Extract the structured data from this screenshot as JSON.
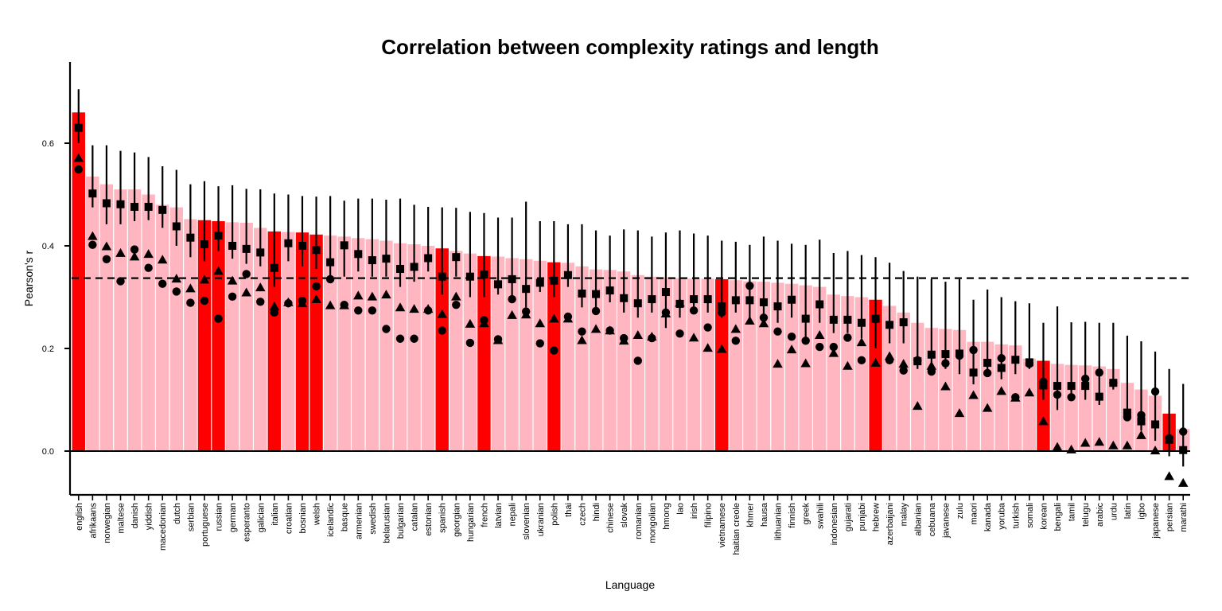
{
  "chart_data": {
    "type": "bar",
    "title": "Correlation between complexity ratings and length",
    "xlabel": "Language",
    "ylabel": "Pearson's r",
    "ylim": [
      -0.09,
      0.72
    ],
    "yticks": [
      0.0,
      0.2,
      0.4,
      0.6
    ],
    "ytick_labels": [
      "0.0",
      "0.2",
      "0.4",
      "0.6"
    ],
    "reference_line": 0.337,
    "grid": false,
    "colors": {
      "highlight": "#ff0000",
      "normal": "#ffb6c1",
      "marker": "#000000"
    },
    "categories": [
      "english",
      "afrikaans",
      "norwegian",
      "maltese",
      "danish",
      "yiddish",
      "macedonian",
      "dutch",
      "serbian",
      "portuguese",
      "russian",
      "german",
      "esperanto",
      "galician",
      "italian",
      "croatian",
      "bosnian",
      "welsh",
      "icelandic",
      "basque",
      "armenian",
      "swedish",
      "belarusian",
      "bulgarian",
      "catalan",
      "estonian",
      "spanish",
      "georgian",
      "hungarian",
      "french",
      "latvian",
      "nepali",
      "slovenian",
      "ukranian",
      "polish",
      "thai",
      "czech",
      "hindi",
      "chinese",
      "slovak",
      "romanian",
      "mongolian",
      "hmong",
      "lao",
      "irish",
      "filipino",
      "vietnamese",
      "haitian creole",
      "khmer",
      "hausa",
      "lithuanian",
      "finnish",
      "greek",
      "swahili",
      "indonesian",
      "gujarati",
      "punjabi",
      "hebrew",
      "azerbaijani",
      "malay",
      "albanian",
      "cebuana",
      "javanese",
      "zulu",
      "maori",
      "kanada",
      "yoruba",
      "turkish",
      "somali",
      "korean",
      "bengali",
      "tamil",
      "telugu",
      "arabic",
      "urdu",
      "latin",
      "igbo",
      "japanese",
      "persian",
      "marathi"
    ],
    "highlighted": [
      "english",
      "portuguese",
      "russian",
      "italian",
      "bosnian",
      "welsh",
      "spanish",
      "french",
      "polish",
      "vietnamese",
      "hebrew",
      "korean",
      "persian"
    ],
    "bar_values": [
      0.66,
      0.535,
      0.52,
      0.51,
      0.51,
      0.5,
      0.48,
      0.475,
      0.452,
      0.45,
      0.448,
      0.446,
      0.445,
      0.435,
      0.428,
      0.427,
      0.426,
      0.422,
      0.42,
      0.418,
      0.415,
      0.413,
      0.41,
      0.405,
      0.403,
      0.4,
      0.395,
      0.39,
      0.385,
      0.38,
      0.379,
      0.376,
      0.374,
      0.371,
      0.368,
      0.367,
      0.36,
      0.354,
      0.353,
      0.35,
      0.343,
      0.34,
      0.339,
      0.337,
      0.336,
      0.336,
      0.335,
      0.333,
      0.331,
      0.33,
      0.328,
      0.326,
      0.323,
      0.32,
      0.305,
      0.302,
      0.3,
      0.295,
      0.283,
      0.27,
      0.25,
      0.24,
      0.238,
      0.236,
      0.213,
      0.213,
      0.208,
      0.206,
      0.18,
      0.176,
      0.17,
      0.168,
      0.167,
      0.165,
      0.16,
      0.133,
      0.12,
      0.108,
      0.073,
      0.043
    ],
    "series": [
      {
        "name": "",
        "marker": "square",
        "values": [
          0.63,
          0.502,
          0.483,
          0.481,
          0.476,
          0.476,
          0.47,
          0.438,
          0.416,
          0.403,
          0.42,
          0.4,
          0.394,
          0.387,
          0.357,
          0.405,
          0.4,
          0.392,
          0.368,
          0.401,
          0.384,
          0.372,
          0.375,
          0.355,
          0.359,
          0.376,
          0.34,
          0.378,
          0.34,
          0.344,
          0.325,
          0.335,
          0.316,
          0.328,
          0.332,
          0.343,
          0.307,
          0.306,
          0.313,
          0.298,
          0.288,
          0.296,
          0.31,
          0.287,
          0.296,
          0.296,
          0.282,
          0.294,
          0.294,
          0.29,
          0.282,
          0.295,
          0.258,
          0.286,
          0.256,
          0.256,
          0.25,
          0.258,
          0.246,
          0.251,
          0.175,
          0.188,
          0.189,
          0.19,
          0.153,
          0.172,
          0.162,
          0.178,
          0.173,
          0.128,
          0.127,
          0.127,
          0.127,
          0.106,
          0.133,
          0.075,
          0.058,
          0.052,
          0.022,
          0.002
        ],
        "err_low": [
          0.6,
          0.475,
          0.442,
          0.442,
          0.448,
          0.45,
          0.435,
          0.4,
          0.378,
          0.37,
          0.39,
          0.375,
          0.365,
          0.36,
          0.32,
          0.37,
          0.36,
          0.355,
          0.33,
          0.34,
          0.35,
          0.34,
          0.34,
          0.32,
          0.33,
          0.35,
          0.305,
          0.34,
          0.3,
          0.3,
          0.305,
          0.3,
          0.28,
          0.31,
          0.3,
          0.32,
          0.28,
          0.28,
          0.29,
          0.27,
          0.26,
          0.27,
          0.24,
          0.26,
          0.27,
          0.27,
          0.26,
          0.27,
          0.26,
          0.26,
          0.25,
          0.26,
          0.22,
          0.25,
          0.23,
          0.23,
          0.22,
          0.2,
          0.21,
          0.21,
          0.16,
          0.17,
          0.16,
          0.15,
          0.13,
          0.15,
          0.14,
          0.15,
          0.16,
          0.1,
          0.08,
          0.1,
          0.1,
          0.09,
          0.12,
          0.06,
          0.04,
          0.02,
          -0.01,
          -0.03
        ],
        "err_high": [
          0.705,
          0.596,
          0.596,
          0.585,
          0.582,
          0.573,
          0.555,
          0.548,
          0.52,
          0.526,
          0.516,
          0.518,
          0.511,
          0.51,
          0.502,
          0.5,
          0.497,
          0.496,
          0.497,
          0.488,
          0.492,
          0.492,
          0.49,
          0.492,
          0.48,
          0.476,
          0.475,
          0.474,
          0.466,
          0.464,
          0.455,
          0.455,
          0.486,
          0.448,
          0.448,
          0.442,
          0.442,
          0.43,
          0.42,
          0.432,
          0.43,
          0.418,
          0.426,
          0.43,
          0.424,
          0.42,
          0.41,
          0.408,
          0.402,
          0.418,
          0.41,
          0.404,
          0.402,
          0.412,
          0.386,
          0.39,
          0.382,
          0.378,
          0.367,
          0.351,
          0.34,
          0.335,
          0.33,
          0.335,
          0.295,
          0.315,
          0.3,
          0.292,
          0.288,
          0.25,
          0.282,
          0.251,
          0.252,
          0.25,
          0.25,
          0.225,
          0.214,
          0.194,
          0.16,
          0.131
        ]
      },
      {
        "name": "",
        "marker": "circle",
        "values": [
          0.549,
          0.402,
          0.374,
          0.331,
          0.393,
          0.357,
          0.326,
          0.311,
          0.289,
          0.293,
          0.258,
          0.301,
          0.345,
          0.291,
          0.27,
          0.288,
          0.293,
          0.321,
          0.335,
          0.285,
          0.274,
          0.274,
          0.238,
          0.219,
          0.219,
          0.274,
          0.235,
          0.285,
          0.211,
          0.255,
          0.218,
          0.296,
          0.272,
          0.21,
          0.196,
          0.262,
          0.233,
          0.273,
          0.235,
          0.22,
          0.176,
          0.22,
          0.27,
          0.229,
          0.274,
          0.241,
          0.27,
          0.215,
          0.322,
          0.26,
          0.233,
          0.223,
          0.215,
          0.203,
          0.203,
          0.221,
          0.177,
          0.257,
          0.177,
          0.157,
          0.177,
          0.155,
          0.171,
          0.186,
          0.197,
          0.152,
          0.181,
          0.105,
          0.17,
          0.135,
          0.11,
          0.105,
          0.141,
          0.153,
          0.133,
          0.066,
          0.07,
          0.116,
          0.025,
          0.038
        ]
      },
      {
        "name": "",
        "marker": "triangle",
        "values": [
          0.57,
          0.418,
          0.398,
          0.385,
          0.378,
          0.383,
          0.372,
          0.335,
          0.316,
          0.333,
          0.35,
          0.331,
          0.308,
          0.318,
          0.281,
          0.289,
          0.287,
          0.295,
          0.283,
          0.283,
          0.302,
          0.3,
          0.304,
          0.279,
          0.276,
          0.276,
          0.266,
          0.3,
          0.247,
          0.248,
          0.215,
          0.264,
          0.265,
          0.248,
          0.257,
          0.257,
          0.215,
          0.237,
          0.234,
          0.214,
          0.225,
          0.222,
          0.267,
          0.288,
          0.22,
          0.2,
          0.198,
          0.237,
          0.253,
          0.248,
          0.169,
          0.197,
          0.17,
          0.225,
          0.19,
          0.165,
          0.211,
          0.171,
          0.184,
          0.169,
          0.087,
          0.165,
          0.125,
          0.073,
          0.108,
          0.083,
          0.116,
          0.103,
          0.113,
          0.057,
          0.007,
          0.002,
          0.015,
          0.017,
          0.01,
          0.01,
          0.03,
          0.0,
          -0.05,
          -0.063
        ]
      }
    ],
    "annotations": []
  }
}
